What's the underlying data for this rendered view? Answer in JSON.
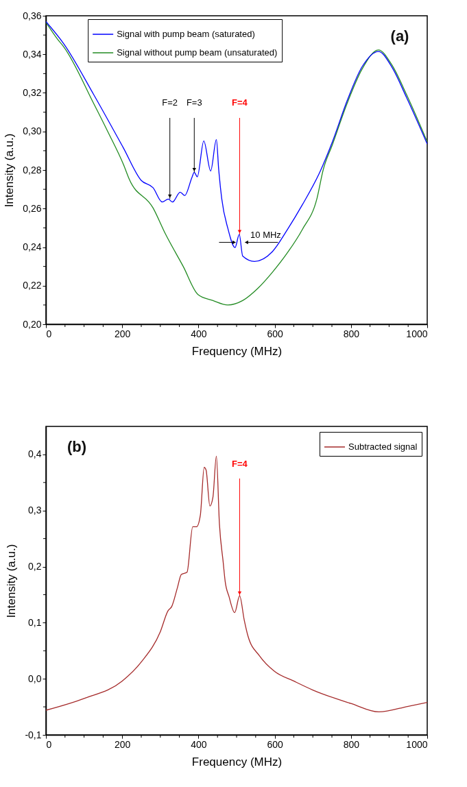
{
  "chart_data": [
    {
      "type": "line",
      "xlabel": "Frequency (MHz)",
      "ylabel": "Intensity (a.u.)",
      "xlim": [
        0,
        1000
      ],
      "ylim": [
        0.2,
        0.36
      ],
      "xticks": [
        0,
        {
          "value": 50,
          "label": null
        },
        {
          "value": 100,
          "label": null
        },
        {
          "value": 150,
          "label": null
        },
        200,
        {
          "value": 250,
          "label": null
        },
        {
          "value": 300,
          "label": null
        },
        {
          "value": 350,
          "label": null
        },
        400,
        {
          "value": 450,
          "label": null
        },
        {
          "value": 500,
          "label": null
        },
        {
          "value": 550,
          "label": null
        },
        600,
        {
          "value": 650,
          "label": null
        },
        {
          "value": 700,
          "label": null
        },
        {
          "value": 750,
          "label": null
        },
        800,
        {
          "value": 850,
          "label": null
        },
        {
          "value": 900,
          "label": null
        },
        {
          "value": 950,
          "label": null
        },
        1000
      ],
      "yticks": [
        {
          "value": 0.2,
          "label": "0,20"
        },
        {
          "value": 0.21,
          "label": null
        },
        {
          "value": 0.22,
          "label": "0,22"
        },
        {
          "value": 0.23,
          "label": null
        },
        {
          "value": 0.24,
          "label": "0,24"
        },
        {
          "value": 0.25,
          "label": null
        },
        {
          "value": 0.26,
          "label": "0,26"
        },
        {
          "value": 0.27,
          "label": null
        },
        {
          "value": 0.28,
          "label": "0,28"
        },
        {
          "value": 0.29,
          "label": null
        },
        {
          "value": 0.3,
          "label": "0,30"
        },
        {
          "value": 0.31,
          "label": null
        },
        {
          "value": 0.32,
          "label": "0,32"
        },
        {
          "value": 0.33,
          "label": null
        },
        {
          "value": 0.34,
          "label": "0,34"
        },
        {
          "value": 0.35,
          "label": null
        },
        {
          "value": 0.36,
          "label": "0,36"
        }
      ],
      "grid": false,
      "legend": "top",
      "series": [
        {
          "name": "Signal with pump beam (saturated)",
          "color": "#0000ff",
          "x": [
            0,
            47,
            125,
            203,
            250,
            281,
            305,
            321,
            332,
            352,
            364,
            383,
            389,
            397,
            414,
            432,
            447,
            453,
            461,
            477,
            496,
            507,
            516,
            547,
            594,
            633,
            672,
            719,
            751,
            790,
            829,
            872,
            907,
            946,
            1000
          ],
          "values": [
            0.357,
            0.3454,
            0.3192,
            0.2915,
            0.2746,
            0.2708,
            0.2634,
            0.2649,
            0.2634,
            0.2685,
            0.2668,
            0.2762,
            0.2788,
            0.2765,
            0.2951,
            0.2795,
            0.2958,
            0.2805,
            0.2652,
            0.2498,
            0.2398,
            0.2466,
            0.2354,
            0.2326,
            0.2377,
            0.249,
            0.2618,
            0.2792,
            0.2945,
            0.316,
            0.3335,
            0.3415,
            0.3335,
            0.3175,
            0.2935
          ]
        },
        {
          "name": "Signal without pump beam (unsaturated)",
          "color": "#228b22",
          "x": [
            0,
            31,
            47,
            125,
            164,
            203,
            219,
            281,
            313,
            360,
            399,
            438,
            477,
            516,
            555,
            594,
            633,
            672,
            711,
            727,
            751,
            790,
            829,
            872,
            907,
            946,
            1000
          ],
          "values": [
            0.3566,
            0.3477,
            0.3438,
            0.3146,
            0.2992,
            0.283,
            0.275,
            0.2603,
            0.247,
            0.23,
            0.2154,
            0.2123,
            0.21,
            0.2123,
            0.2185,
            0.227,
            0.237,
            0.249,
            0.2654,
            0.28,
            0.293,
            0.3146,
            0.3323,
            0.3423,
            0.3346,
            0.319,
            0.2946
          ]
        }
      ],
      "annotations": [
        "(a)",
        {
          "text": "F=2",
          "x": 325,
          "y": 0.265
        },
        {
          "text": "F=3",
          "x": 389,
          "y": 0.2788
        },
        {
          "text": "F=4",
          "x": 508,
          "y": 0.2466
        },
        {
          "text": "10 MHz",
          "x": 508,
          "y": 0.2425
        }
      ]
    },
    {
      "type": "line",
      "xlabel": "Frequency (MHz)",
      "ylabel": "Intensity (a.u.)",
      "xlim": [
        0,
        1000
      ],
      "ylim": [
        -0.1,
        0.45
      ],
      "xticks": [
        0,
        {
          "value": 50,
          "label": null
        },
        {
          "value": 100,
          "label": null
        },
        {
          "value": 150,
          "label": null
        },
        200,
        {
          "value": 250,
          "label": null
        },
        {
          "value": 300,
          "label": null
        },
        {
          "value": 350,
          "label": null
        },
        400,
        {
          "value": 450,
          "label": null
        },
        {
          "value": 500,
          "label": null
        },
        {
          "value": 550,
          "label": null
        },
        600,
        {
          "value": 650,
          "label": null
        },
        {
          "value": 700,
          "label": null
        },
        {
          "value": 750,
          "label": null
        },
        800,
        {
          "value": 850,
          "label": null
        },
        {
          "value": 900,
          "label": null
        },
        {
          "value": 950,
          "label": null
        },
        1000
      ],
      "yticks": [
        {
          "value": -0.1,
          "label": "-0,1"
        },
        {
          "value": -0.05,
          "label": null
        },
        {
          "value": 0,
          "label": "0,0"
        },
        {
          "value": 0.05,
          "label": null
        },
        {
          "value": 0.1,
          "label": "0,1"
        },
        {
          "value": 0.15,
          "label": null
        },
        {
          "value": 0.2,
          "label": "0,2"
        },
        {
          "value": 0.25,
          "label": null
        },
        {
          "value": 0.3,
          "label": "0,3"
        },
        {
          "value": 0.35,
          "label": null
        },
        {
          "value": 0.4,
          "label": "0,4"
        }
      ],
      "grid": false,
      "legend": "top right",
      "series": [
        {
          "name": "Subtracted signal",
          "color": "#a52a2a",
          "x": [
            0,
            100,
            200,
            250,
            300,
            320,
            330,
            345,
            355,
            370,
            385,
            395,
            405,
            415,
            420,
            430,
            438,
            447,
            455,
            465,
            470,
            480,
            495,
            508,
            520,
            530,
            560,
            600,
            650,
            700,
            800,
            873,
            950,
            1000
          ],
          "values": [
            -0.056,
            -0.035,
            -0.004,
            0.03,
            0.084,
            0.121,
            0.129,
            0.163,
            0.186,
            0.19,
            0.271,
            0.271,
            0.292,
            0.377,
            0.372,
            0.308,
            0.324,
            0.397,
            0.276,
            0.207,
            0.174,
            0.147,
            0.118,
            0.148,
            0.105,
            0.076,
            0.041,
            0.013,
            -0.004,
            -0.02,
            -0.044,
            -0.059,
            -0.049,
            -0.042
          ]
        }
      ],
      "annotations": [
        "(b)",
        {
          "text": "F=4",
          "x": 508,
          "y": 0.148
        }
      ]
    }
  ]
}
